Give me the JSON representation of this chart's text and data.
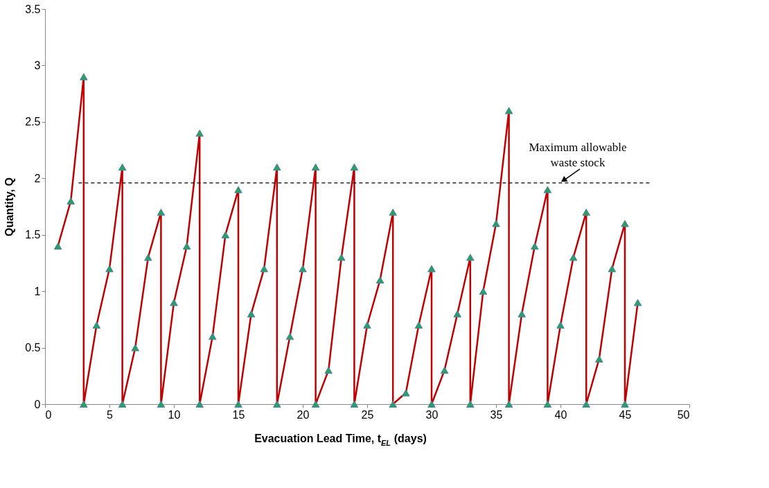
{
  "chart_data": {
    "type": "line",
    "xlabel": "Evacuation Lead Time, t$_{EL}$ (days)",
    "ylabel": "Quantity, Q",
    "series": [
      {
        "color": "#c00000",
        "x": [
          1,
          2,
          3,
          3,
          4,
          5,
          6,
          6,
          7,
          8,
          9,
          9,
          10,
          11,
          12,
          12,
          13,
          14,
          15,
          15,
          16,
          17,
          18,
          18,
          19,
          20,
          21,
          21,
          22,
          23,
          24,
          24,
          25,
          26,
          27,
          27,
          28,
          29,
          30,
          30,
          31,
          32,
          33,
          33,
          34,
          35,
          36,
          36,
          37,
          38,
          39,
          39,
          40,
          41,
          42,
          42,
          43,
          44,
          45,
          45,
          46
        ],
        "values": [
          1.4,
          1.8,
          2.9,
          0,
          0.7,
          1.2,
          2.1,
          0,
          0.5,
          1.3,
          1.7,
          0,
          0.9,
          1.4,
          2.4,
          0,
          0.6,
          1.5,
          1.9,
          0,
          0.8,
          1.2,
          2.1,
          0,
          0.6,
          1.2,
          2.1,
          0,
          0.3,
          1.3,
          2.1,
          0,
          0.7,
          1.1,
          1.7,
          0,
          0.1,
          0.7,
          1.2,
          0,
          0.3,
          0.8,
          1.3,
          0,
          1.0,
          1.6,
          2.6,
          0,
          0.8,
          1.4,
          1.9,
          0,
          0.7,
          1.3,
          1.7,
          0,
          0.4,
          1.2,
          1.6,
          0,
          0.9
        ]
      }
    ],
    "xlim": [
      0,
      50
    ],
    "xticks": [
      0,
      5,
      10,
      15,
      20,
      25,
      30,
      35,
      40,
      45,
      50
    ],
    "ylim": [
      0,
      3.5
    ],
    "yticks": [
      0,
      0.5,
      1,
      1.5,
      2,
      2.5,
      3,
      3.5
    ],
    "ref_lines": [
      {
        "axis": "y",
        "value": 1.96,
        "line_style": "dashed",
        "color": "#000000"
      }
    ],
    "annotations": [
      {
        "text": "Maximum allowable waste stock",
        "x": 40,
        "y": 1.96
      }
    ],
    "grid": false,
    "marker": "triangle",
    "line_style": "solid"
  }
}
